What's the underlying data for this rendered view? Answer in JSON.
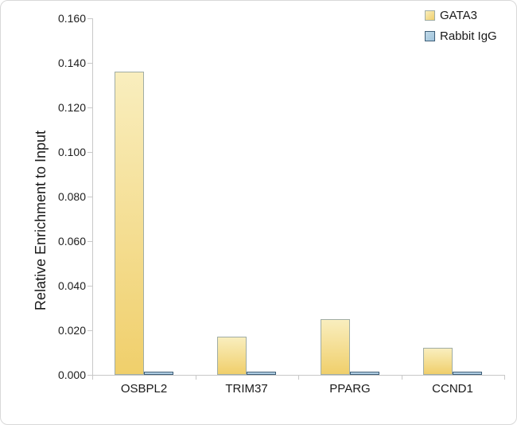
{
  "chart_data": {
    "type": "bar",
    "title": "",
    "categories": [
      "OSBPL2",
      "TRIM37",
      "PPARG",
      "CCND1"
    ],
    "series": [
      {
        "name": "GATA3",
        "values": [
          0.136,
          0.017,
          0.025,
          0.012
        ],
        "fill_top": "#f9eebe",
        "fill_bottom": "#f0cf6b",
        "border": "#a0ada5"
      },
      {
        "name": "Rabbit IgG",
        "values": [
          0.0015,
          0.0015,
          0.0015,
          0.0015
        ],
        "fill_top": "#c2dae9",
        "fill_bottom": "#9fc3db",
        "border": "#3f5f78"
      }
    ],
    "xlabel": "",
    "ylabel": "Relative Enrichment to Input",
    "ylim": [
      0,
      0.16
    ],
    "y_tick_labels": [
      "0.000",
      "0.020",
      "0.040",
      "0.060",
      "0.080",
      "0.100",
      "0.120",
      "0.140",
      "0.160"
    ],
    "legend_position": "top-right",
    "grid": false
  },
  "colors": {
    "axis": "#c8c8c8",
    "tick_text": "#1e1e1e",
    "frame_border": "#d8d8d8",
    "background": "#ffffff"
  }
}
